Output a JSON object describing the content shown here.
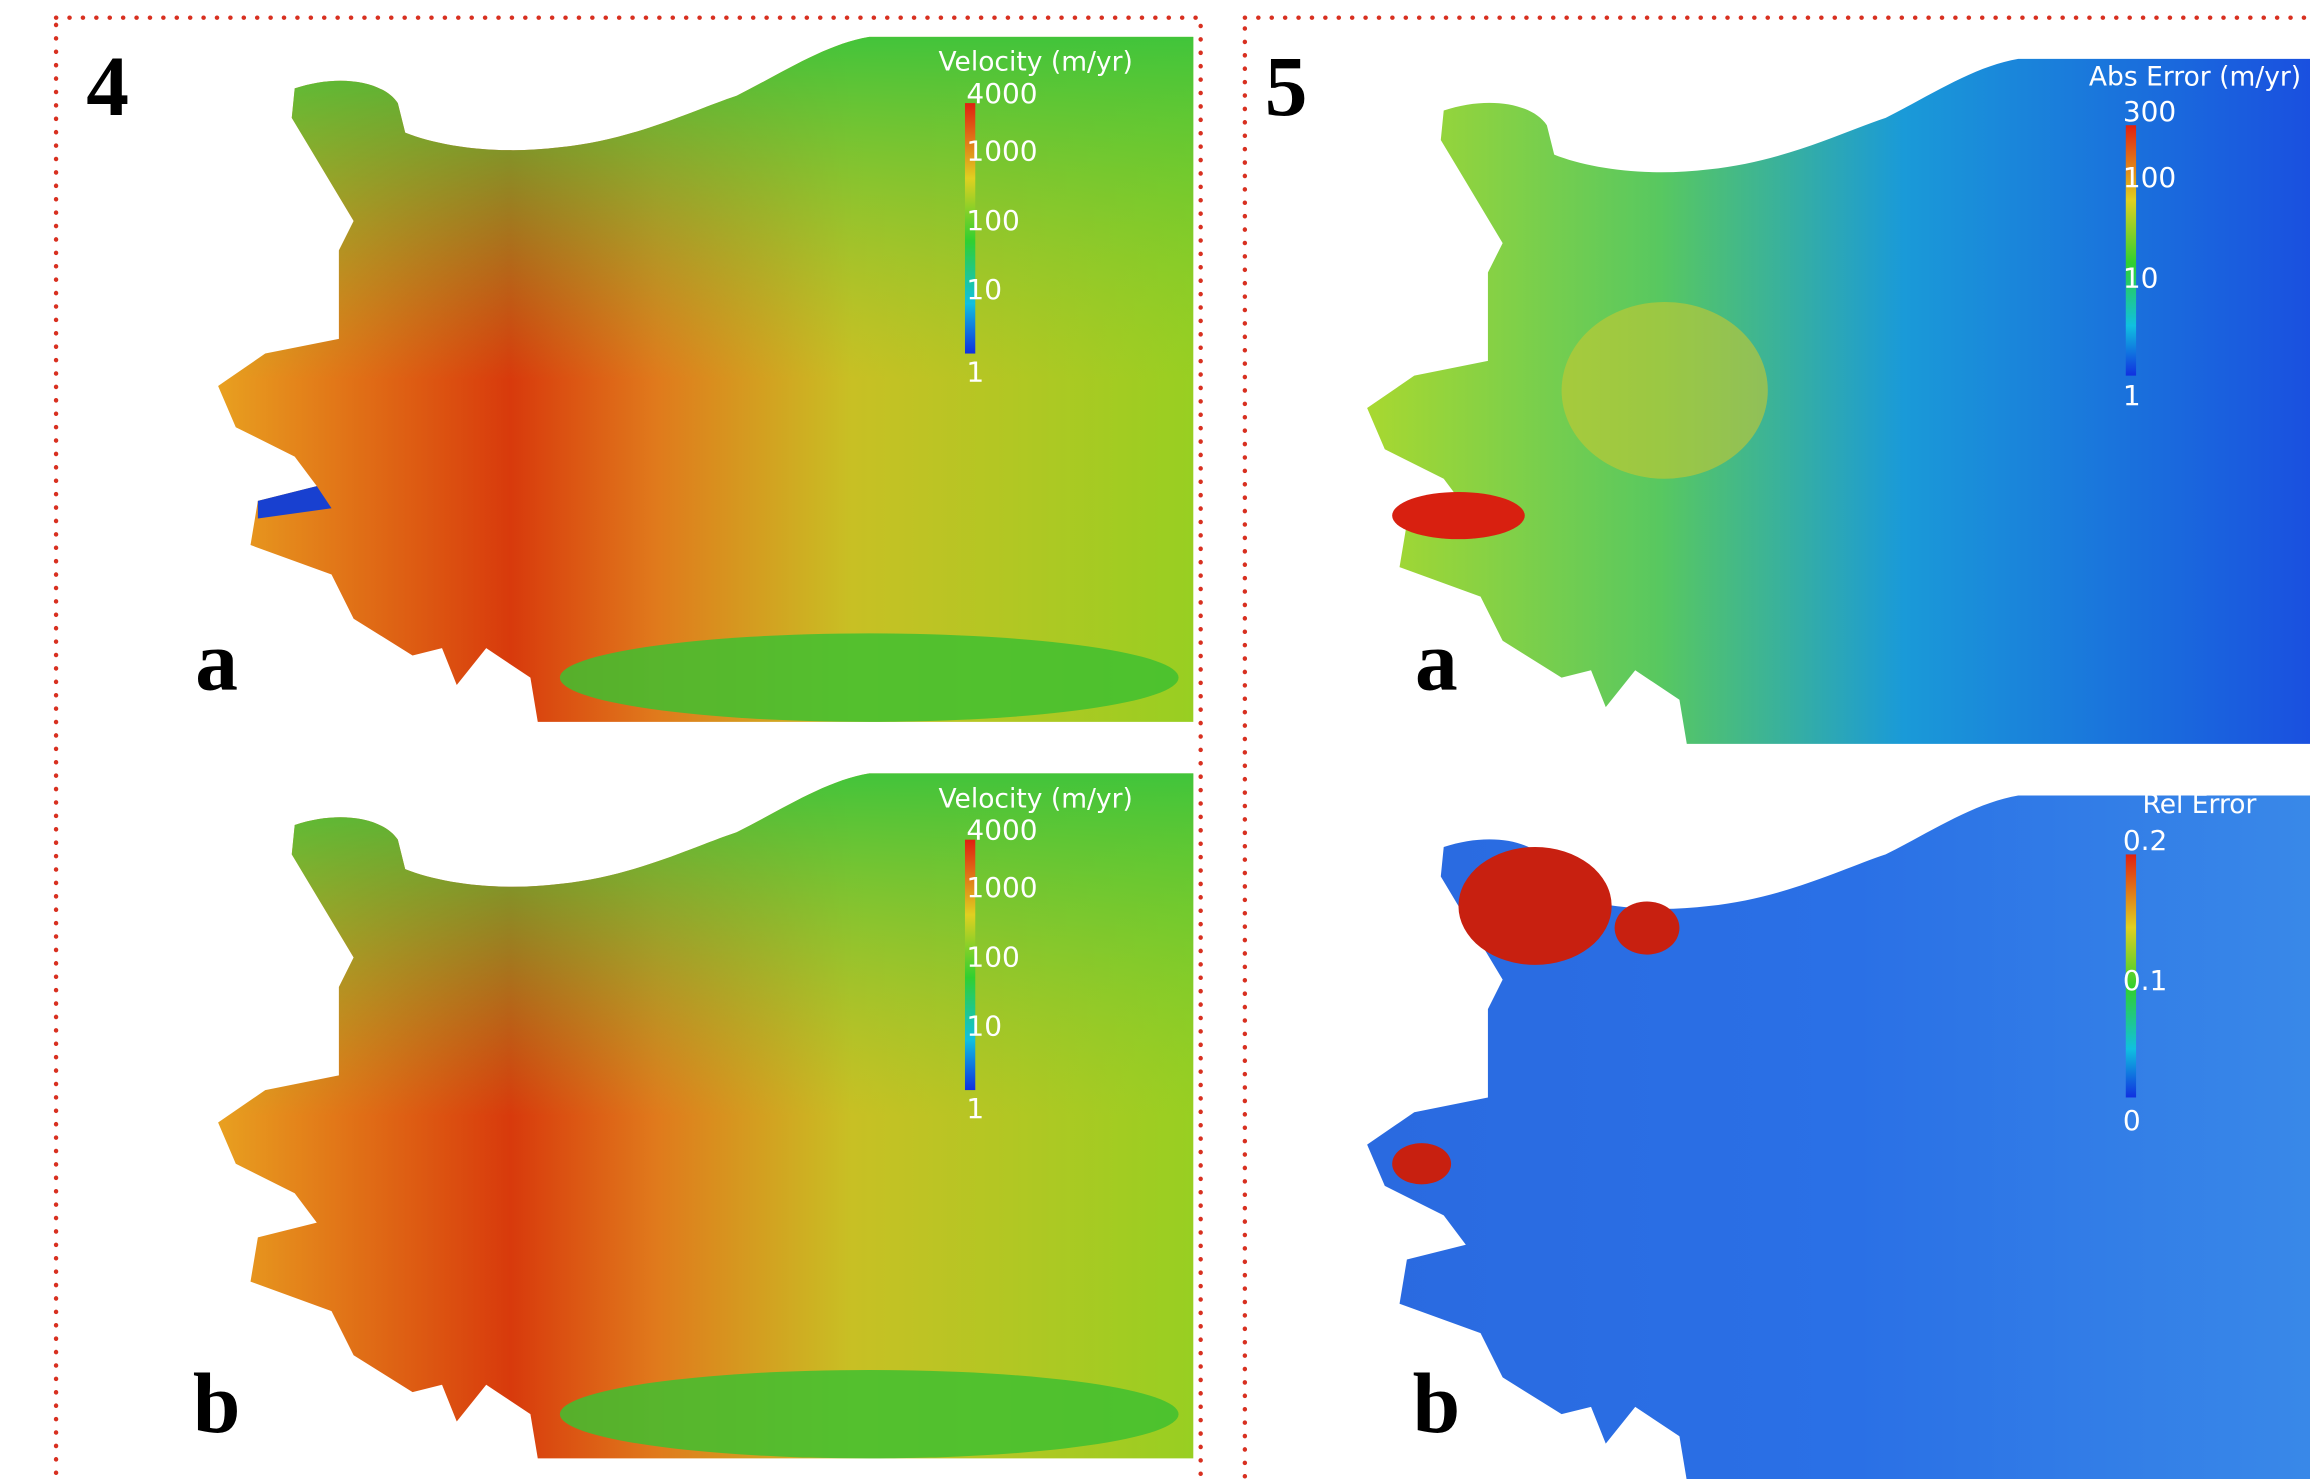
{
  "panels": [
    {
      "number": "4",
      "maps": [
        {
          "label": "a",
          "colorbar": {
            "title": "Velocity (m/yr)",
            "ticks": [
              "4000",
              "1000",
              "100",
              "10",
              "1"
            ]
          }
        },
        {
          "label": "b",
          "colorbar": {
            "title": "Velocity (m/yr)",
            "ticks": [
              "4000",
              "1000",
              "100",
              "10",
              "1"
            ]
          }
        }
      ]
    },
    {
      "number": "5",
      "maps": [
        {
          "label": "a",
          "colorbar": {
            "title": "Abs Error (m/yr)",
            "ticks": [
              "300",
              "100",
              "10",
              "1"
            ]
          }
        },
        {
          "label": "b",
          "colorbar": {
            "title": "Rel Error",
            "ticks": [
              "0.2",
              "0.1",
              "0"
            ]
          }
        }
      ]
    }
  ]
}
